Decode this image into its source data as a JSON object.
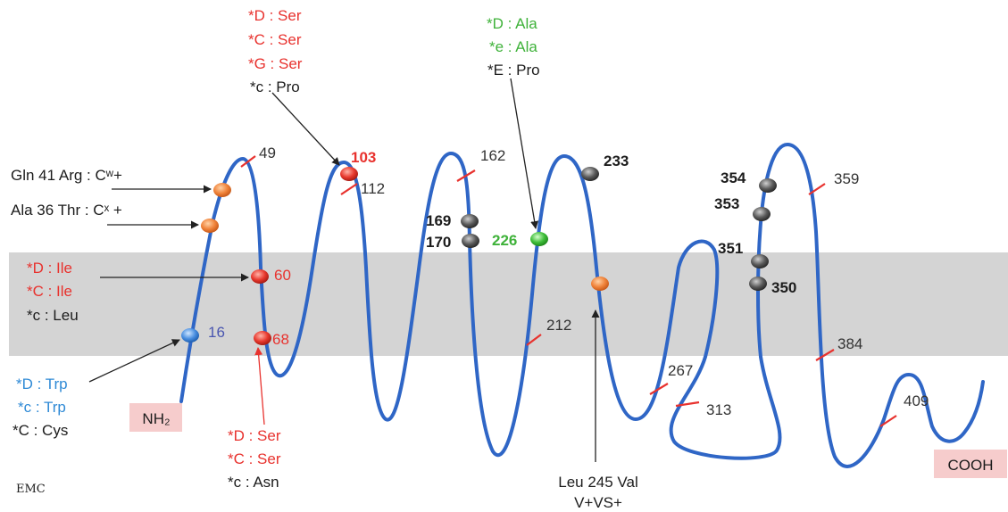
{
  "termini": {
    "n": "NH₂",
    "c": "COOH"
  },
  "logo": "EMC",
  "positions": {
    "p16": "16",
    "p49": "49",
    "p60": "60",
    "p68": "68",
    "p103": "103",
    "p112": "112",
    "p162": "162",
    "p169": "169",
    "p170": "170",
    "p212": "212",
    "p226": "226",
    "p233": "233",
    "p267": "267",
    "p313": "313",
    "p350": "350",
    "p351": "351",
    "p353": "353",
    "p354": "354",
    "p359": "359",
    "p384": "384",
    "p409": "409"
  },
  "labels": {
    "gln41": "Gln 41 Arg : Cʷ+",
    "ala36": "Ala 36 Thr : Cˣ +",
    "site103": [
      "*D : Ser",
      "*C : Ser",
      "*G : Ser",
      "*c : Pro"
    ],
    "site226": [
      "*D : Ala",
      "*e : Ala",
      "*E : Pro"
    ],
    "site60": [
      "*D : Ile",
      "*C : Ile",
      "*c : Leu"
    ],
    "site16": [
      "*D : Trp",
      "*c : Trp",
      "*C : Cys"
    ],
    "site68": [
      "*D : Ser",
      "*C : Ser",
      "*c : Asn"
    ],
    "leu245": [
      "Leu 245 Val",
      "V+VS+"
    ]
  },
  "colors": {
    "chain": "#2f66c6",
    "membrane": "#d4d4d4",
    "red": "#e8322e",
    "blue": "#2f8ad6",
    "green": "#3fb23a",
    "orange": "#f0833a",
    "gray_node": "#555555",
    "terminus_bg": "#f6cccc"
  }
}
